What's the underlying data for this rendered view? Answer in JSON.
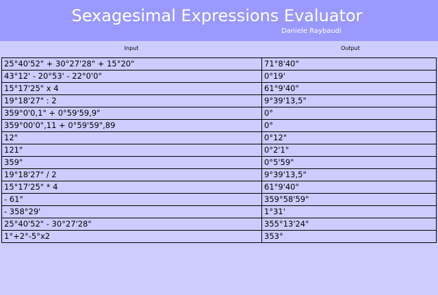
{
  "header": {
    "title": "Sexagesimal Expressions Evaluator",
    "author": "Daniele Raybaudi",
    "background": "#9999ff"
  },
  "columns": {
    "input": "Input",
    "output": "Output"
  },
  "rows": [
    {
      "input": "25°40'52\" + 30°27'28\" + 15°20\"",
      "output": "71°8'40\""
    },
    {
      "input": "43°12' - 20°53' - 22°0'0\"",
      "output": "0°19'"
    },
    {
      "input": "15°17'25\" x 4",
      "output": "61°9'40\""
    },
    {
      "input": "19°18'27\" : 2",
      "output": "9°39'13,5\""
    },
    {
      "input": "359°0'0,1\" + 0°59'59,9\"",
      "output": "0°"
    },
    {
      "input": "359°00'0\",11 + 0°59'59\",89",
      "output": "0°"
    },
    {
      "input": "12\"",
      "output": "0°12\""
    },
    {
      "input": "121\"",
      "output": "0°2'1\""
    },
    {
      "input": "359\"",
      "output": "0°5'59\""
    },
    {
      "input": "19°18'27\" / 2",
      "output": "9°39'13,5\""
    },
    {
      "input": "15°17'25\" * 4",
      "output": "61°9'40\""
    },
    {
      "input": "- 61\"",
      "output": "359°58'59\""
    },
    {
      "input": "- 358°29'",
      "output": "1°31'"
    },
    {
      "input": "25°40'52\" - 30°27'28\"",
      "output": "355°13'24\""
    },
    {
      "input": "1°+2°-5°x2",
      "output": "353°"
    }
  ]
}
